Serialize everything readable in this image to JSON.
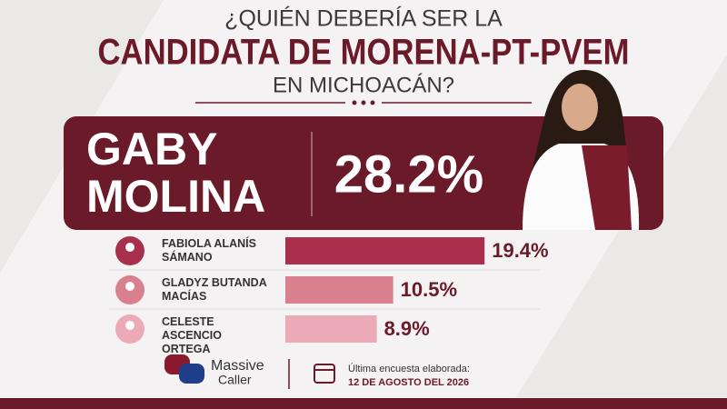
{
  "header": {
    "line1": "¿QUIÉN DEBERÍA SER LA",
    "line2": "CANDIDATA DE MORENA-PT-PVEM",
    "line3": "EN MICHOACÁN?"
  },
  "chart_data": {
    "type": "bar",
    "categories": [
      "GABY MOLINA",
      "FABIOLA ALANÍS SÁMANO",
      "GLADYZ BUTANDA MACÍAS",
      "CELESTE ASCENCIO ORTEGA"
    ],
    "values": [
      28.2,
      19.4,
      10.5,
      8.9
    ],
    "value_labels": [
      "28.2%",
      "19.4%",
      "10.5%",
      "8.9%"
    ],
    "colors": [
      "#6b1a2a",
      "#a8304c",
      "#d9808f",
      "#ecaab6"
    ]
  },
  "footer": {
    "brand1": "Massive",
    "brand2": "Caller",
    "note": "Última encuesta elaborada:",
    "date": "12 DE AGOSTO DEL 2026"
  }
}
